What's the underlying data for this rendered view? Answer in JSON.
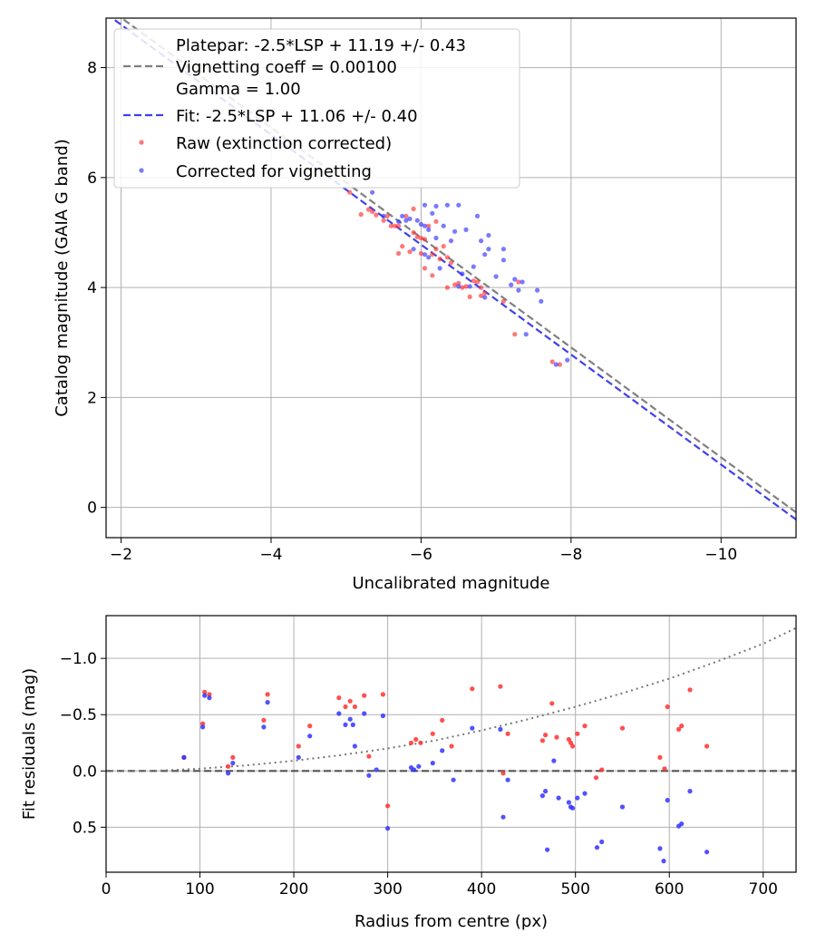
{
  "chart_data": [
    {
      "type": "scatter",
      "xlabel": "Uncalibrated magnitude",
      "ylabel": "Catalog magnitude (GAIA G band)",
      "xlim": [
        -1.8,
        -11.0
      ],
      "ylim": [
        8.9,
        -0.55
      ],
      "x_inverted": true,
      "y_inverted": true,
      "xticks": [
        -2,
        -4,
        -6,
        -8,
        -10
      ],
      "xtick_labels": [
        "−2",
        "−4",
        "−6",
        "−8",
        "−10"
      ],
      "yticks": [
        0,
        2,
        4,
        6,
        8
      ],
      "ytick_labels": [
        "0",
        "2",
        "4",
        "6",
        "8"
      ],
      "grid": true,
      "legend_position": "upper-left",
      "legend": [
        {
          "label": "Platepar: -2.5*LSP + 11.19 +/- 0.43",
          "kind": "none"
        },
        {
          "label": "Vignetting coeff = 0.00100",
          "kind": "dashed-line",
          "color": "#808080"
        },
        {
          "label": "Gamma = 1.00",
          "kind": "none"
        },
        {
          "label": "Fit: -2.5*LSP + 11.06 +/- 0.40",
          "kind": "dashed-line",
          "color": "#4040ee"
        },
        {
          "label": "Raw (extinction corrected)",
          "kind": "marker",
          "color": "#ff3030"
        },
        {
          "label": "Corrected for vignetting",
          "kind": "marker",
          "color": "#3333ff"
        }
      ],
      "lines": [
        {
          "name": "Platepar",
          "x": [
            -1.8,
            -11.0
          ],
          "y": [
            9.11,
            -0.09
          ],
          "color": "#808080",
          "style": "dashed"
        },
        {
          "name": "Fit",
          "x": [
            -1.8,
            -11.0
          ],
          "y": [
            8.98,
            -0.22
          ],
          "color": "#4040ee",
          "style": "dashed"
        }
      ],
      "series": [
        {
          "name": "Raw (extinction corrected)",
          "color": "#ff3030",
          "points": [
            [
              -5.05,
              5.73
            ],
            [
              -5.2,
              5.33
            ],
            [
              -5.3,
              5.42
            ],
            [
              -5.35,
              5.38
            ],
            [
              -5.4,
              5.32
            ],
            [
              -5.5,
              5.22
            ],
            [
              -5.55,
              5.3
            ],
            [
              -5.6,
              5.12
            ],
            [
              -5.65,
              5.12
            ],
            [
              -5.7,
              4.62
            ],
            [
              -5.7,
              5.12
            ],
            [
              -5.75,
              4.75
            ],
            [
              -5.8,
              5.3
            ],
            [
              -5.85,
              4.65
            ],
            [
              -5.9,
              5.43
            ],
            [
              -5.9,
              5.0
            ],
            [
              -5.95,
              4.92
            ],
            [
              -6.0,
              4.9
            ],
            [
              -6.0,
              4.62
            ],
            [
              -6.05,
              4.88
            ],
            [
              -6.05,
              4.35
            ],
            [
              -6.1,
              5.12
            ],
            [
              -6.15,
              4.6
            ],
            [
              -6.15,
              4.22
            ],
            [
              -6.2,
              4.7
            ],
            [
              -6.2,
              5.2
            ],
            [
              -6.25,
              4.52
            ],
            [
              -6.3,
              4.75
            ],
            [
              -6.35,
              4.55
            ],
            [
              -6.35,
              4.0
            ],
            [
              -6.4,
              4.45
            ],
            [
              -6.45,
              4.05
            ],
            [
              -6.5,
              4.08
            ],
            [
              -6.55,
              4.0
            ],
            [
              -6.6,
              4.02
            ],
            [
              -6.65,
              3.83
            ],
            [
              -6.7,
              4.12
            ],
            [
              -6.75,
              4.1
            ],
            [
              -6.8,
              4.0
            ],
            [
              -6.8,
              3.85
            ],
            [
              -6.85,
              3.9
            ],
            [
              -7.1,
              3.75
            ],
            [
              -7.25,
              3.15
            ],
            [
              -7.3,
              4.1
            ],
            [
              -7.75,
              2.65
            ],
            [
              -7.85,
              2.6
            ]
          ]
        },
        {
          "name": "Corrected for vignetting",
          "color": "#3333ff",
          "points": [
            [
              -5.35,
              5.73
            ],
            [
              -5.5,
              5.3
            ],
            [
              -5.7,
              5.2
            ],
            [
              -5.75,
              5.3
            ],
            [
              -5.8,
              5.22
            ],
            [
              -5.85,
              5.25
            ],
            [
              -5.9,
              4.7
            ],
            [
              -5.95,
              5.22
            ],
            [
              -6.0,
              5.15
            ],
            [
              -6.05,
              5.12
            ],
            [
              -6.05,
              4.6
            ],
            [
              -6.05,
              5.5
            ],
            [
              -6.1,
              5.05
            ],
            [
              -6.1,
              4.55
            ],
            [
              -6.15,
              5.35
            ],
            [
              -6.2,
              4.9
            ],
            [
              -6.2,
              5.48
            ],
            [
              -6.25,
              4.35
            ],
            [
              -6.3,
              5.12
            ],
            [
              -6.35,
              5.5
            ],
            [
              -6.4,
              4.85
            ],
            [
              -6.45,
              5.02
            ],
            [
              -6.5,
              5.5
            ],
            [
              -6.5,
              4.02
            ],
            [
              -6.55,
              4.25
            ],
            [
              -6.6,
              5.05
            ],
            [
              -6.65,
              4.02
            ],
            [
              -6.7,
              4.38
            ],
            [
              -6.75,
              5.3
            ],
            [
              -6.8,
              4.85
            ],
            [
              -6.85,
              3.82
            ],
            [
              -6.85,
              4.6
            ],
            [
              -6.9,
              4.7
            ],
            [
              -6.9,
              4.95
            ],
            [
              -7.0,
              4.2
            ],
            [
              -7.1,
              4.5
            ],
            [
              -7.1,
              4.7
            ],
            [
              -7.2,
              4.05
            ],
            [
              -7.25,
              4.15
            ],
            [
              -7.3,
              3.95
            ],
            [
              -7.35,
              4.1
            ],
            [
              -7.4,
              3.15
            ],
            [
              -7.55,
              3.95
            ],
            [
              -7.6,
              3.75
            ],
            [
              -7.8,
              2.6
            ],
            [
              -7.95,
              2.68
            ]
          ]
        }
      ]
    },
    {
      "type": "scatter",
      "xlabel": "Radius from centre (px)",
      "ylabel": "Fit residuals (mag)",
      "xlim": [
        0,
        735
      ],
      "ylim": [
        -1.38,
        0.9
      ],
      "xticks": [
        0,
        100,
        200,
        300,
        400,
        500,
        600,
        700
      ],
      "xtick_labels": [
        "0",
        "100",
        "200",
        "300",
        "400",
        "500",
        "600",
        "700"
      ],
      "yticks": [
        0.5,
        0.0,
        -0.5,
        -1.0
      ],
      "ytick_labels": [
        "0.5",
        "0.0",
        "−0.5",
        "−1.0"
      ],
      "grid": true,
      "lines": [
        {
          "name": "zero",
          "type": "horizontal",
          "y": 0,
          "color": "#555555",
          "style": "dashed"
        },
        {
          "name": "vignetting",
          "type": "curve",
          "color": "#777777",
          "style": "dotted",
          "x": [
            0,
            50,
            100,
            150,
            200,
            250,
            300,
            350,
            400,
            450,
            500,
            550,
            600,
            650,
            700,
            735
          ],
          "y": [
            0,
            0,
            -0.02,
            -0.05,
            -0.09,
            -0.14,
            -0.2,
            -0.27,
            -0.36,
            -0.46,
            -0.57,
            -0.69,
            -0.82,
            -0.97,
            -1.13,
            -1.27
          ]
        }
      ],
      "series": [
        {
          "name": "Raw (extinction corrected)",
          "color": "#ff3030",
          "points": [
            [
              83,
              -0.12
            ],
            [
              103,
              -0.42
            ],
            [
              105,
              -0.7
            ],
            [
              110,
              -0.68
            ],
            [
              130,
              -0.04
            ],
            [
              135,
              -0.12
            ],
            [
              168,
              -0.45
            ],
            [
              172,
              -0.68
            ],
            [
              205,
              -0.22
            ],
            [
              217,
              -0.4
            ],
            [
              248,
              -0.65
            ],
            [
              255,
              -0.57
            ],
            [
              260,
              -0.62
            ],
            [
              265,
              -0.57
            ],
            [
              275,
              -0.67
            ],
            [
              280,
              -0.13
            ],
            [
              295,
              -0.68
            ],
            [
              300,
              0.31
            ],
            [
              325,
              -0.25
            ],
            [
              330,
              -0.28
            ],
            [
              335,
              -0.25
            ],
            [
              348,
              -0.33
            ],
            [
              358,
              -0.45
            ],
            [
              368,
              -0.22
            ],
            [
              390,
              -0.73
            ],
            [
              420,
              -0.75
            ],
            [
              423,
              0.02
            ],
            [
              428,
              -0.33
            ],
            [
              465,
              -0.27
            ],
            [
              468,
              -0.32
            ],
            [
              475,
              -0.6
            ],
            [
              480,
              -0.3
            ],
            [
              493,
              -0.28
            ],
            [
              495,
              -0.25
            ],
            [
              497,
              -0.22
            ],
            [
              502,
              -0.33
            ],
            [
              510,
              -0.4
            ],
            [
              522,
              0.06
            ],
            [
              528,
              -0.01
            ],
            [
              550,
              -0.38
            ],
            [
              590,
              -0.12
            ],
            [
              595,
              -0.02
            ],
            [
              598,
              -0.57
            ],
            [
              610,
              -0.37
            ],
            [
              613,
              -0.4
            ],
            [
              622,
              -0.72
            ],
            [
              640,
              -0.22
            ]
          ]
        },
        {
          "name": "Corrected for vignetting",
          "color": "#3333ff",
          "points": [
            [
              83,
              -0.12
            ],
            [
              103,
              -0.39
            ],
            [
              105,
              -0.67
            ],
            [
              110,
              -0.65
            ],
            [
              130,
              0.02
            ],
            [
              135,
              -0.07
            ],
            [
              168,
              -0.39
            ],
            [
              172,
              -0.61
            ],
            [
              205,
              -0.12
            ],
            [
              217,
              -0.31
            ],
            [
              248,
              -0.51
            ],
            [
              255,
              -0.41
            ],
            [
              260,
              -0.46
            ],
            [
              263,
              -0.41
            ],
            [
              265,
              -0.22
            ],
            [
              275,
              -0.51
            ],
            [
              280,
              0.04
            ],
            [
              288,
              -0.01
            ],
            [
              295,
              -0.49
            ],
            [
              300,
              0.51
            ],
            [
              325,
              -0.03
            ],
            [
              328,
              -0.01
            ],
            [
              333,
              -0.04
            ],
            [
              348,
              -0.07
            ],
            [
              358,
              -0.18
            ],
            [
              370,
              0.08
            ],
            [
              390,
              -0.38
            ],
            [
              420,
              -0.37
            ],
            [
              423,
              0.41
            ],
            [
              428,
              0.08
            ],
            [
              465,
              0.22
            ],
            [
              468,
              0.18
            ],
            [
              470,
              0.7
            ],
            [
              477,
              -0.09
            ],
            [
              482,
              0.24
            ],
            [
              493,
              0.28
            ],
            [
              495,
              0.32
            ],
            [
              497,
              0.33
            ],
            [
              502,
              0.24
            ],
            [
              510,
              0.2
            ],
            [
              523,
              0.68
            ],
            [
              528,
              0.63
            ],
            [
              550,
              0.32
            ],
            [
              590,
              0.69
            ],
            [
              594,
              0.8
            ],
            [
              598,
              0.26
            ],
            [
              610,
              0.49
            ],
            [
              613,
              0.47
            ],
            [
              622,
              0.18
            ],
            [
              640,
              0.72
            ]
          ]
        }
      ]
    }
  ]
}
